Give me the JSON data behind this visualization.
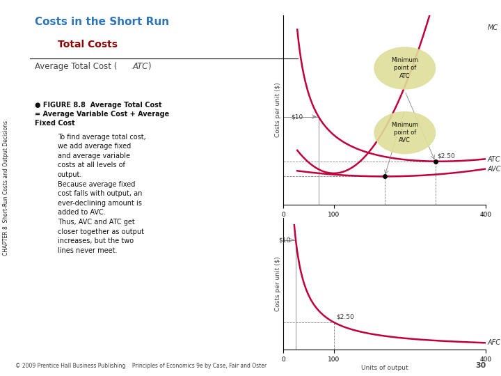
{
  "title": "Costs in the Short Run",
  "subtitle": "Total Costs",
  "section_title": "Average Total Cost (",
  "section_title_italic": "ATC",
  "section_title_end": ")",
  "title_color": "#2E74B5",
  "subtitle_color": "#8B0000",
  "section_color": "#555555",
  "curve_color": "#C0003C",
  "background_color": "#FFFFFF",
  "figure_label_bold": "● FIGURE 8.8  Average Total Cost\n= Average Variable Cost + Average\nFixed Cost",
  "body_lines": [
    "To find average total cost,",
    "we add average fixed",
    "and average variable",
    "costs at all levels of",
    "output.",
    "Because average fixed",
    "cost falls with output, an",
    "ever-declining amount is",
    "added to AVC.",
    "Thus, AVC and ATC get",
    "closer together as output",
    "increases, but the two",
    "lines never meet."
  ],
  "chapter_text": "CHAPTER 8  Short-Run Costs and Output Decisions",
  "footer": "© 2009 Prentice Hall Business Publishing    Principles of Economics 9e by Case, Fair and Oster",
  "page_number": "30"
}
